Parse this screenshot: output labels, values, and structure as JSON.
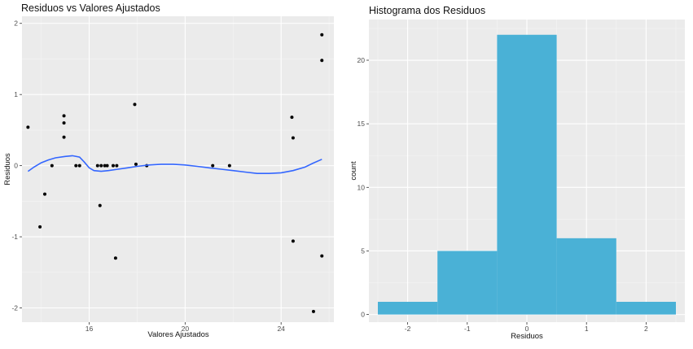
{
  "chart_data": [
    {
      "type": "scatter",
      "title": "Residuos vs Valores Ajustados",
      "xlabel": "Valores Ajustados",
      "ylabel": "Residuos",
      "xlim": [
        13.2,
        26.2
      ],
      "ylim": [
        -2.2,
        2.1
      ],
      "x_ticks": [
        16,
        20,
        24
      ],
      "y_ticks": [
        -2,
        -1,
        0,
        1,
        2
      ],
      "grid": true,
      "points": [
        [
          13.45,
          0.54
        ],
        [
          13.95,
          -0.86
        ],
        [
          14.15,
          -0.4
        ],
        [
          14.45,
          0.0
        ],
        [
          14.95,
          0.7
        ],
        [
          14.95,
          0.6
        ],
        [
          14.95,
          0.4
        ],
        [
          15.45,
          0.0
        ],
        [
          15.6,
          0.0
        ],
        [
          16.35,
          0.0
        ],
        [
          16.5,
          0.0
        ],
        [
          16.65,
          0.0
        ],
        [
          16.75,
          0.0
        ],
        [
          16.45,
          -0.56
        ],
        [
          17.0,
          0.0
        ],
        [
          17.15,
          0.0
        ],
        [
          17.1,
          -1.3
        ],
        [
          17.9,
          0.86
        ],
        [
          17.95,
          0.02
        ],
        [
          18.4,
          0.0
        ],
        [
          21.15,
          0.0
        ],
        [
          21.85,
          0.0
        ],
        [
          24.45,
          0.68
        ],
        [
          24.5,
          0.39
        ],
        [
          24.5,
          -1.06
        ],
        [
          25.35,
          -2.05
        ],
        [
          25.7,
          1.84
        ],
        [
          25.7,
          1.48
        ],
        [
          25.7,
          -1.27
        ]
      ],
      "smooth_line": {
        "color": "#3366ff",
        "x": [
          13.45,
          13.7,
          14.0,
          14.3,
          14.6,
          15.0,
          15.3,
          15.6,
          15.8,
          16.0,
          16.2,
          16.5,
          16.8,
          17.2,
          17.6,
          18.0,
          18.5,
          19.0,
          19.5,
          20.0,
          20.5,
          21.0,
          21.5,
          22.0,
          22.5,
          23.0,
          23.5,
          24.0,
          24.5,
          25.0,
          25.3,
          25.7
        ],
        "y": [
          -0.08,
          -0.02,
          0.04,
          0.08,
          0.11,
          0.13,
          0.14,
          0.12,
          0.05,
          -0.03,
          -0.07,
          -0.08,
          -0.07,
          -0.05,
          -0.03,
          -0.01,
          0.01,
          0.02,
          0.02,
          0.01,
          -0.01,
          -0.03,
          -0.05,
          -0.07,
          -0.09,
          -0.11,
          -0.11,
          -0.1,
          -0.07,
          -0.02,
          0.03,
          0.09
        ]
      }
    },
    {
      "type": "histogram",
      "title": "Histograma dos Residuos",
      "xlabel": "Residuos",
      "ylabel": "count",
      "xlim": [
        -2.65,
        2.65
      ],
      "ylim": [
        -0.6,
        23.2
      ],
      "x_ticks": [
        -2,
        -1,
        0,
        1,
        2
      ],
      "y_ticks": [
        0,
        5,
        10,
        15,
        20
      ],
      "grid": true,
      "bar_color": "#4ab1d6",
      "bins": [
        {
          "from": -2.5,
          "to": -1.5,
          "count": 1
        },
        {
          "from": -1.5,
          "to": -0.5,
          "count": 5
        },
        {
          "from": -0.5,
          "to": 0.5,
          "count": 22
        },
        {
          "from": 0.5,
          "to": 1.5,
          "count": 6
        },
        {
          "from": 1.5,
          "to": 2.5,
          "count": 1
        }
      ]
    }
  ]
}
